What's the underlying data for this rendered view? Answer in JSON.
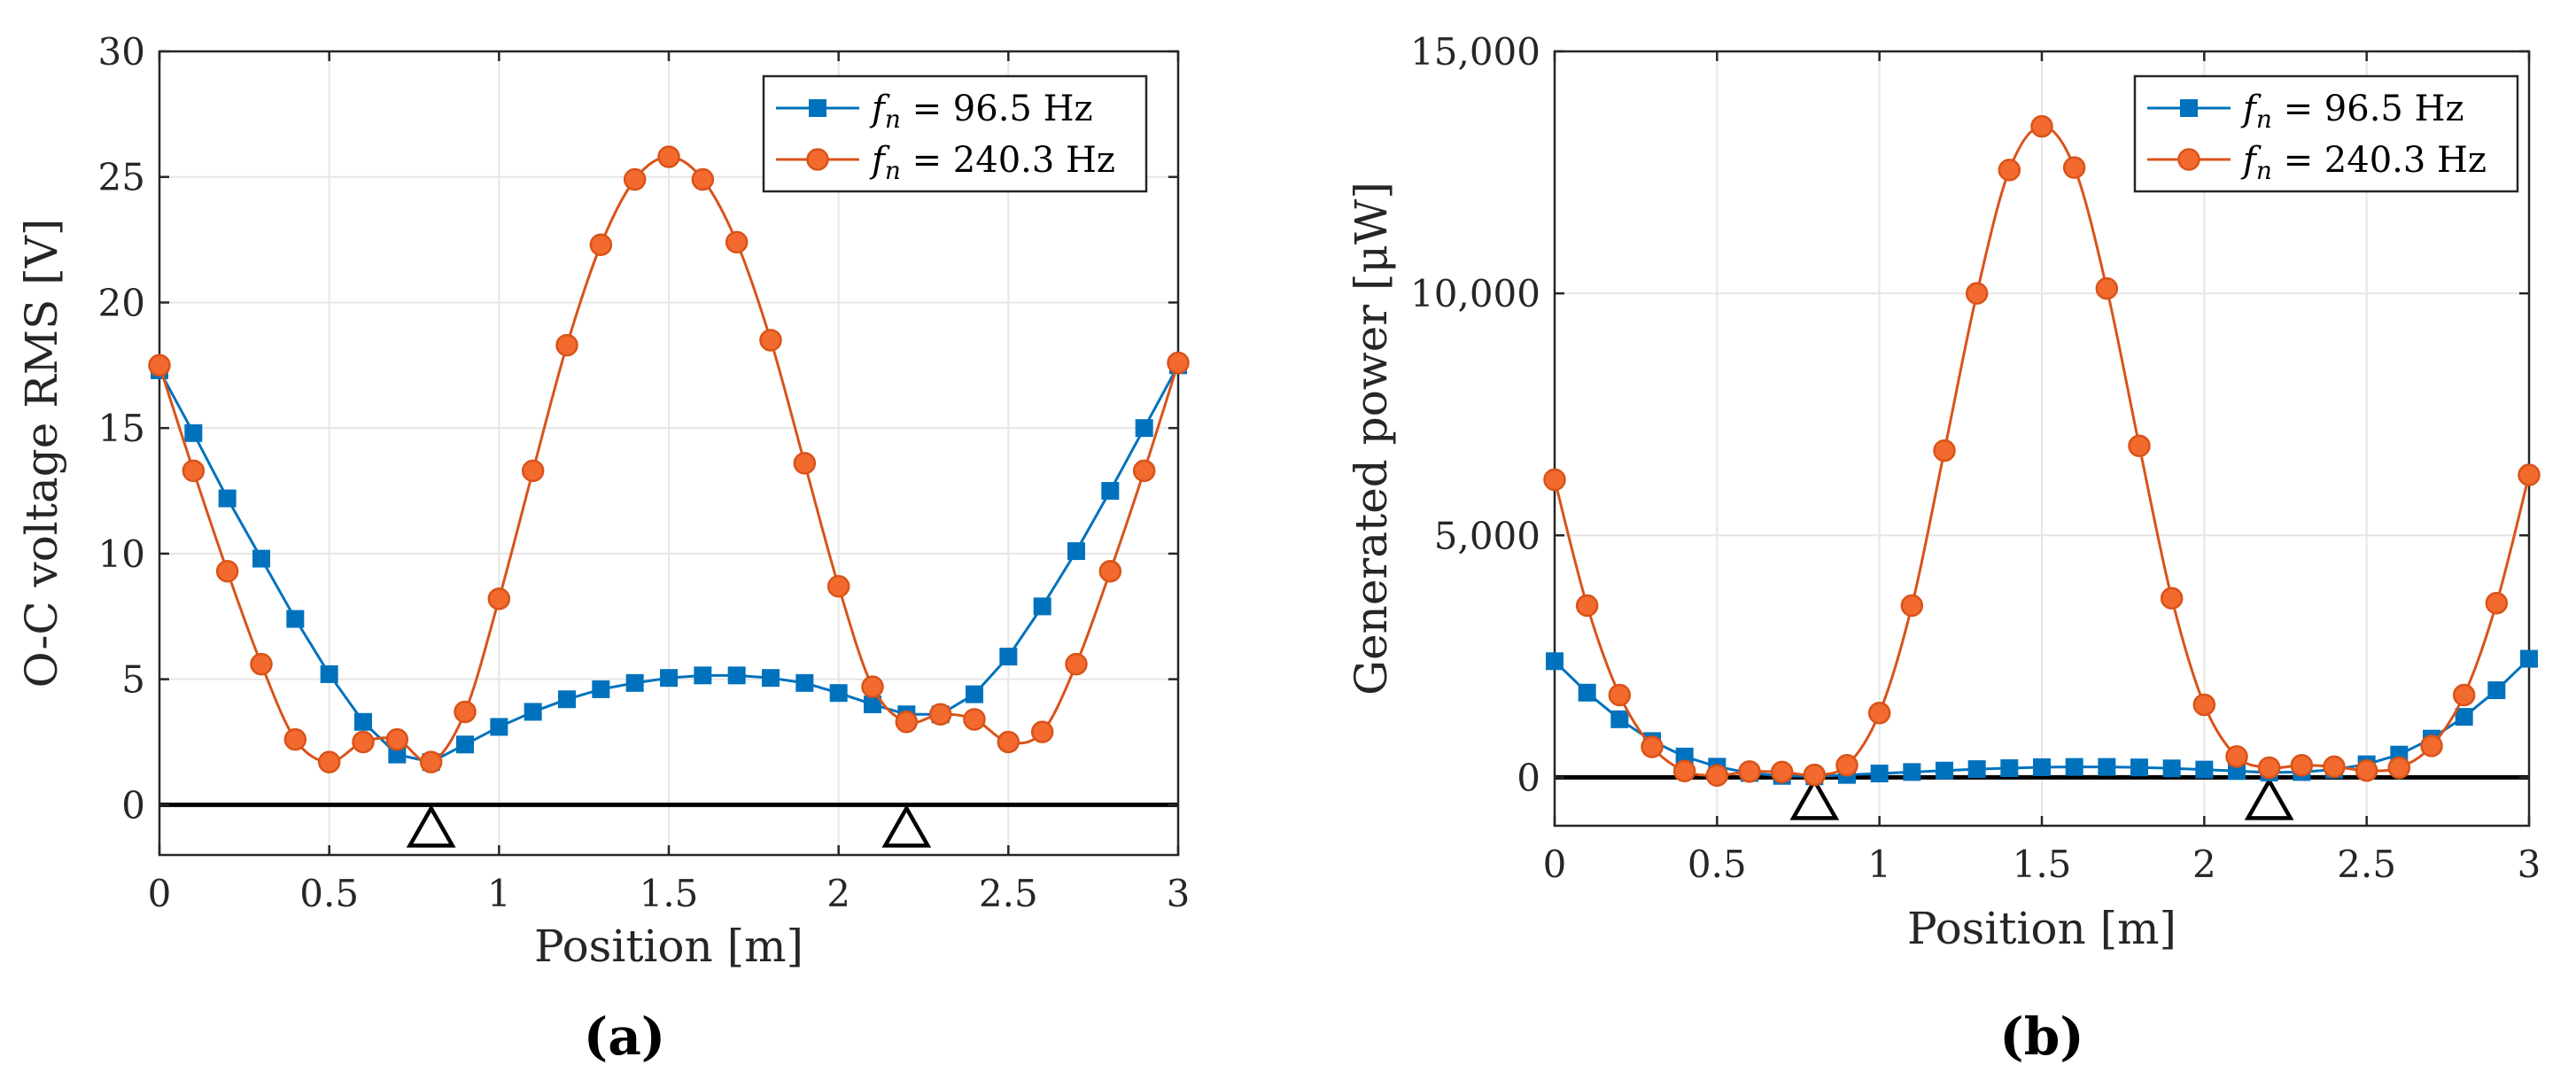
{
  "colors": {
    "blue": "#0072BD",
    "orange": "#D95319",
    "orange_fill": "#F26A2E"
  },
  "chart_data": [
    {
      "type": "line",
      "panel_label": "(a)",
      "xlabel": "Position [m]",
      "ylabel": "O-C voltage RMS [V]",
      "xlim": [
        0,
        3
      ],
      "ylim": [
        -2,
        30
      ],
      "grid": true,
      "legend_position": "top-right",
      "xticks": [
        0,
        0.5,
        1,
        1.5,
        2,
        2.5,
        3
      ],
      "xtick_labels": [
        "0",
        "0.5",
        "1",
        "1.5",
        "2",
        "2.5",
        "3"
      ],
      "yticks": [
        0,
        5,
        10,
        15,
        20,
        25,
        30
      ],
      "ytick_labels": [
        "0",
        "5",
        "10",
        "15",
        "20",
        "25",
        "30"
      ],
      "supports_x": [
        0.8,
        2.2
      ],
      "series": [
        {
          "name": "fn = 96.5 Hz",
          "legend_var": "f",
          "legend_sub": "n",
          "legend_rest": " = 96.5 Hz",
          "marker": "square",
          "color": "#0072BD",
          "x": [
            0,
            0.1,
            0.2,
            0.3,
            0.4,
            0.5,
            0.6,
            0.7,
            0.8,
            0.9,
            1.0,
            1.1,
            1.2,
            1.3,
            1.4,
            1.5,
            1.6,
            1.7,
            1.8,
            1.9,
            2.0,
            2.1,
            2.2,
            2.3,
            2.4,
            2.5,
            2.6,
            2.7,
            2.8,
            2.9,
            3.0
          ],
          "y": [
            17.3,
            14.8,
            12.2,
            9.8,
            7.4,
            5.2,
            3.3,
            2.0,
            1.7,
            2.4,
            3.1,
            3.7,
            4.2,
            4.6,
            4.85,
            5.05,
            5.15,
            5.15,
            5.05,
            4.85,
            4.45,
            4.0,
            3.6,
            3.6,
            4.4,
            5.9,
            7.9,
            10.1,
            12.5,
            15.0,
            17.5
          ]
        },
        {
          "name": "fn = 240.3 Hz",
          "legend_var": "f",
          "legend_sub": "n",
          "legend_rest": " = 240.3 Hz",
          "marker": "circle",
          "color": "#D95319",
          "x": [
            0,
            0.1,
            0.2,
            0.3,
            0.4,
            0.5,
            0.6,
            0.7,
            0.8,
            0.9,
            1.0,
            1.1,
            1.2,
            1.3,
            1.4,
            1.5,
            1.6,
            1.7,
            1.8,
            1.9,
            2.0,
            2.1,
            2.2,
            2.3,
            2.4,
            2.5,
            2.6,
            2.7,
            2.8,
            2.9,
            3.0
          ],
          "y": [
            17.5,
            13.3,
            9.3,
            5.6,
            2.6,
            1.7,
            2.5,
            2.6,
            1.7,
            3.7,
            8.2,
            13.3,
            18.3,
            22.3,
            24.9,
            25.8,
            24.9,
            22.4,
            18.5,
            13.6,
            8.7,
            4.7,
            3.3,
            3.6,
            3.4,
            2.5,
            2.9,
            5.6,
            9.3,
            13.3,
            17.6
          ]
        }
      ]
    },
    {
      "type": "line",
      "panel_label": "(b)",
      "xlabel": "Position [m]",
      "ylabel": "Generated power [μW]",
      "xlim": [
        0,
        3
      ],
      "ylim": [
        -1000,
        15000
      ],
      "grid": true,
      "legend_position": "top-right",
      "xticks": [
        0,
        0.5,
        1,
        1.5,
        2,
        2.5,
        3
      ],
      "xtick_labels": [
        "0",
        "0.5",
        "1",
        "1.5",
        "2",
        "2.5",
        "3"
      ],
      "yticks": [
        0,
        5000,
        10000,
        15000
      ],
      "ytick_labels": [
        "0",
        "5,000",
        "10,000",
        "15,000"
      ],
      "supports_x": [
        0.8,
        2.2
      ],
      "series": [
        {
          "name": "fn = 96.5 Hz",
          "legend_var": "f",
          "legend_sub": "n",
          "legend_rest": " = 96.5 Hz",
          "marker": "square",
          "color": "#0072BD",
          "x": [
            0,
            0.1,
            0.2,
            0.3,
            0.4,
            0.5,
            0.6,
            0.7,
            0.8,
            0.9,
            1.0,
            1.1,
            1.2,
            1.3,
            1.4,
            1.5,
            1.6,
            1.7,
            1.8,
            1.9,
            2.0,
            2.1,
            2.2,
            2.3,
            2.4,
            2.5,
            2.6,
            2.7,
            2.8,
            2.9,
            3.0
          ],
          "y": [
            2400,
            1750,
            1200,
            750,
            430,
            220,
            90,
            30,
            20,
            50,
            80,
            110,
            140,
            170,
            190,
            210,
            215,
            215,
            205,
            185,
            160,
            130,
            100,
            110,
            160,
            270,
            470,
            800,
            1250,
            1800,
            2450
          ]
        },
        {
          "name": "fn = 240.3 Hz",
          "legend_var": "f",
          "legend_sub": "n",
          "legend_rest": " = 240.3 Hz",
          "marker": "circle",
          "color": "#D95319",
          "x": [
            0,
            0.1,
            0.2,
            0.3,
            0.4,
            0.5,
            0.6,
            0.7,
            0.8,
            0.9,
            1.0,
            1.1,
            1.2,
            1.3,
            1.4,
            1.5,
            1.6,
            1.7,
            1.8,
            1.9,
            2.0,
            2.1,
            2.2,
            2.3,
            2.4,
            2.5,
            2.6,
            2.7,
            2.8,
            2.9,
            3.0
          ],
          "y": [
            6150,
            3550,
            1700,
            630,
            130,
            40,
            120,
            110,
            50,
            250,
            1330,
            3550,
            6750,
            10000,
            12550,
            13450,
            12600,
            10100,
            6850,
            3700,
            1500,
            430,
            200,
            250,
            220,
            140,
            200,
            650,
            1700,
            3600,
            6250
          ]
        }
      ]
    }
  ]
}
